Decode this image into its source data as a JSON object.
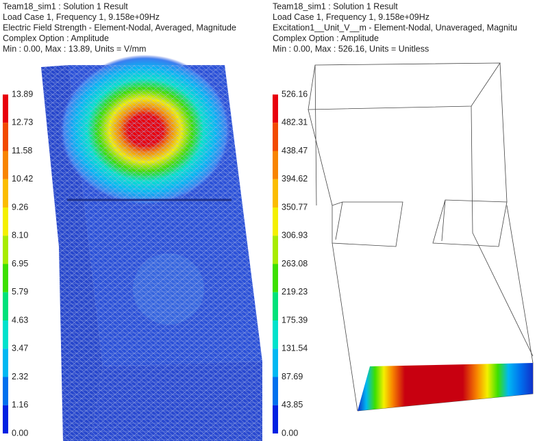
{
  "panels": [
    {
      "header": [
        "Team18_sim1 : Solution 1 Result",
        "Load Case 1, Frequency 1, 9.158e+09Hz",
        "Electric Field Strength - Element-Nodal, Averaged, Magnitude",
        "Complex Option : Amplitude",
        "Min : 0.00, Max : 13.89, Units = V/mm"
      ],
      "legend": {
        "labels": [
          "13.89",
          "12.73",
          "11.58",
          "10.42",
          "9.26",
          "8.10",
          "6.95",
          "5.79",
          "4.63",
          "3.47",
          "2.32",
          "1.16",
          "0.00"
        ],
        "colors": [
          "#e8000c",
          "#f24a00",
          "#f88400",
          "#fbbd00",
          "#f4f000",
          "#a8ec00",
          "#3ce000",
          "#00e27a",
          "#00e2cc",
          "#00b8f2",
          "#0070ee",
          "#0020e2"
        ]
      }
    },
    {
      "header": [
        "Team18_sim1 : Solution 1 Result",
        "Load Case 1, Frequency 1, 9.158e+09Hz",
        "Excitation1__Unit_V__m - Element-Nodal, Unaveraged, Magnitu",
        "Complex Option : Amplitude",
        "Min : 0.00, Max : 526.16, Units = Unitless"
      ],
      "legend": {
        "labels": [
          "526.16",
          "482.31",
          "438.47",
          "394.62",
          "350.77",
          "306.93",
          "263.08",
          "219.23",
          "175.39",
          "131.54",
          "87.69",
          "43.85",
          "0.00"
        ],
        "colors": [
          "#e8000c",
          "#f24a00",
          "#f88400",
          "#fbbd00",
          "#f4f000",
          "#a8ec00",
          "#3ce000",
          "#00e27a",
          "#00e2cc",
          "#00b8f2",
          "#0070ee",
          "#0020e2"
        ]
      }
    }
  ]
}
